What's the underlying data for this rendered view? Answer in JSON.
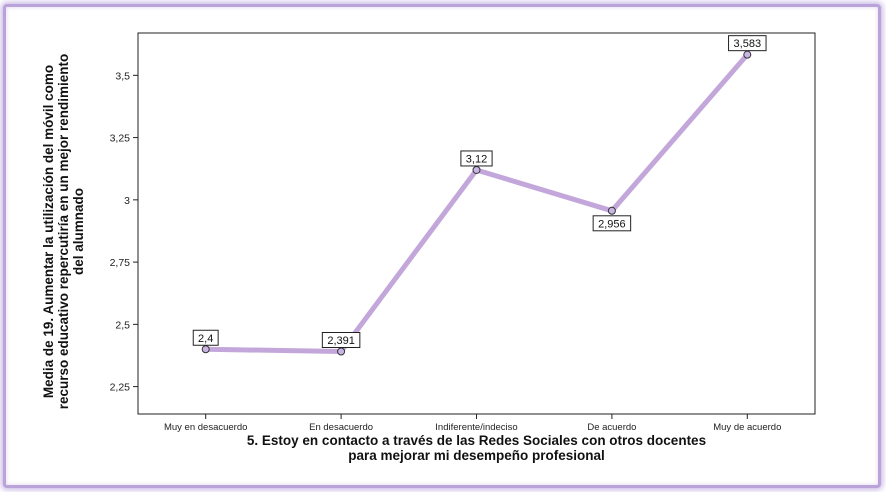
{
  "chart_data": {
    "type": "line",
    "categories": [
      "Muy en desacuerdo",
      "En desacuerdo",
      "Indiferente/indeciso",
      "De acuerdo",
      "Muy de acuerdo"
    ],
    "values": [
      2.4,
      2.391,
      3.12,
      2.956,
      3.583
    ],
    "data_labels": [
      "2,4",
      "2,391",
      "3,12",
      "2,956",
      "3,583"
    ],
    "xlabel_lines": [
      "5. Estoy en contacto a través de las  Redes Sociales con otros docentes",
      "para mejorar mi desempeño  profesional"
    ],
    "ylabel_lines": [
      "Media de 19. Aumentar la utilización del móvil  como",
      "recurso educativo repercutiría  en un mejor rendimiento",
      "del  alumnado"
    ],
    "yticks": [
      2.25,
      2.5,
      2.75,
      3,
      3.25,
      3.5
    ],
    "ytick_labels": [
      "2,25",
      "2,5",
      "2,75",
      "3",
      "3,25",
      "3,5"
    ],
    "ylim": [
      2.14,
      3.67
    ],
    "grid": false,
    "legend": "none",
    "colors": {
      "line": "#c3a7db",
      "marker_fill": "#c9b4e3",
      "marker_edge": "#333333",
      "frame": "#b9a3d8"
    }
  }
}
